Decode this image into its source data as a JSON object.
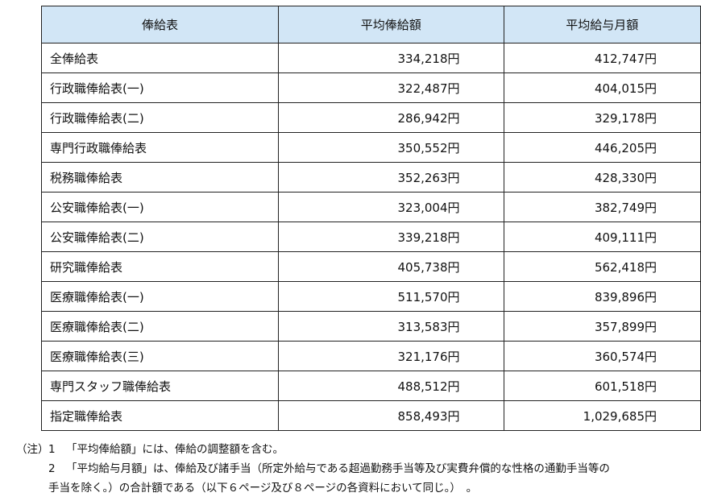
{
  "table": {
    "headers": [
      "俸給表",
      "平均俸給額",
      "平均給与月額"
    ],
    "rows": [
      {
        "name": "全俸給表",
        "avg_salary": "334,218円",
        "avg_monthly_pay": "412,747円"
      },
      {
        "name": "行政職俸給表(一)",
        "avg_salary": "322,487円",
        "avg_monthly_pay": "404,015円"
      },
      {
        "name": "行政職俸給表(二)",
        "avg_salary": "286,942円",
        "avg_monthly_pay": "329,178円"
      },
      {
        "name": "専門行政職俸給表",
        "avg_salary": "350,552円",
        "avg_monthly_pay": "446,205円"
      },
      {
        "name": "税務職俸給表",
        "avg_salary": "352,263円",
        "avg_monthly_pay": "428,330円"
      },
      {
        "name": "公安職俸給表(一)",
        "avg_salary": "323,004円",
        "avg_monthly_pay": "382,749円"
      },
      {
        "name": "公安職俸給表(二)",
        "avg_salary": "339,218円",
        "avg_monthly_pay": "409,111円"
      },
      {
        "name": "研究職俸給表",
        "avg_salary": "405,738円",
        "avg_monthly_pay": "562,418円"
      },
      {
        "name": "医療職俸給表(一)",
        "avg_salary": "511,570円",
        "avg_monthly_pay": "839,896円"
      },
      {
        "name": "医療職俸給表(二)",
        "avg_salary": "313,583円",
        "avg_monthly_pay": "357,899円"
      },
      {
        "name": "医療職俸給表(三)",
        "avg_salary": "321,176円",
        "avg_monthly_pay": "360,574円"
      },
      {
        "name": "専門スタッフ職俸給表",
        "avg_salary": "488,512円",
        "avg_monthly_pay": "601,518円"
      },
      {
        "name": "指定職俸給表",
        "avg_salary": "858,493円",
        "avg_monthly_pay": "1,029,685円"
      }
    ]
  },
  "notes": {
    "prefix": "（注）",
    "items": [
      {
        "number": "1",
        "text": "「平均俸給額」には、俸給の調整額を含む。"
      },
      {
        "number": "2",
        "text": "「平均給与月額」は、俸給及び諸手当（所定外給与である超過勤務手当等及び実費弁償的な性格の通勤手当等の",
        "continuation": "手当を除く。）の合計額である（以下６ページ及び８ページの各資料において同じ。）　。"
      }
    ]
  },
  "colors": {
    "header_background": "#d2e6f6",
    "border": "#222222",
    "text": "#111111"
  }
}
